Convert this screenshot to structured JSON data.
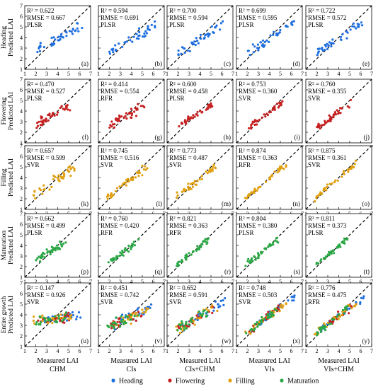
{
  "figure": {
    "row_labels": [
      [
        "Heading",
        "Predicted LAI"
      ],
      [
        "Flowering",
        "Predicted LAI"
      ],
      [
        "Filling",
        "Predicted LAI"
      ],
      [
        "Maturation",
        "Predicted LAI"
      ],
      [
        "Entire growth",
        "Predicted LAI"
      ]
    ],
    "col_xlabels": [
      "Measured LAI",
      "Measured LAI",
      "Measured LAI",
      "Measured LAI",
      "Measured LAI"
    ],
    "col_features": [
      "CHM",
      "CIs",
      "CIs+CHM",
      "VIs",
      "VIs+CHM"
    ],
    "legend": [
      {
        "label": "Heading",
        "color": "#1f6fe0"
      },
      {
        "label": "Flowering",
        "color": "#c62020"
      },
      {
        "label": "Filling",
        "color": "#e0a010"
      },
      {
        "label": "Maturation",
        "color": "#2aa845"
      }
    ]
  },
  "chart_data": {
    "type": "scatter",
    "grid": false,
    "xlim": [
      1,
      7
    ],
    "ylim": [
      1,
      7
    ],
    "ticks": [
      1,
      2,
      3,
      4,
      5,
      6,
      7
    ],
    "reference_line": "1:1 dashed",
    "stages": [
      "Heading",
      "Flowering",
      "Filling",
      "Maturation"
    ],
    "panels": [
      {
        "id": "(a)",
        "r2": "R² = 0.622",
        "rmse": "RMSE = 0.667",
        "model": "PLSR",
        "stage": "Heading",
        "feature": "CHM",
        "slope": 0.62,
        "spread": 0.55,
        "range": [
          2.0,
          6.3
        ],
        "seed": 11
      },
      {
        "id": "(b)",
        "r2": "R² = 0.594",
        "rmse": "RMSE = 0.691",
        "model": "PLSR",
        "stage": "Heading",
        "feature": "CIs",
        "slope": 0.6,
        "spread": 0.58,
        "range": [
          2.0,
          6.3
        ],
        "seed": 12
      },
      {
        "id": "(c)",
        "r2": "R² = 0.700",
        "rmse": "RMSE = 0.594",
        "model": "PLSR",
        "stage": "Heading",
        "feature": "CIs+CHM",
        "slope": 0.68,
        "spread": 0.5,
        "range": [
          2.0,
          6.3
        ],
        "seed": 13
      },
      {
        "id": "(d)",
        "r2": "R² = 0.699",
        "rmse": "RMSE = 0.595",
        "model": "PLSR",
        "stage": "Heading",
        "feature": "VIs",
        "slope": 0.68,
        "spread": 0.5,
        "range": [
          2.0,
          6.3
        ],
        "seed": 14
      },
      {
        "id": "(e)",
        "r2": "R² = 0.722",
        "rmse": "RMSE = 0.572",
        "model": "PLSR",
        "stage": "Heading",
        "feature": "VIs+CHM",
        "slope": 0.7,
        "spread": 0.48,
        "range": [
          2.0,
          6.3
        ],
        "seed": 15
      },
      {
        "id": "(f)",
        "r2": "R² = 0.470",
        "rmse": "RMSE = 0.527",
        "model": "PLSR",
        "stage": "Flowering",
        "feature": "CHM",
        "slope": 0.5,
        "spread": 0.45,
        "range": [
          2.0,
          5.2
        ],
        "seed": 21
      },
      {
        "id": "(g)",
        "r2": "R² = 0.414",
        "rmse": "RMSE = 0.554",
        "model": "RFR",
        "stage": "Flowering",
        "feature": "CIs",
        "slope": 0.55,
        "spread": 0.48,
        "range": [
          2.0,
          5.2
        ],
        "seed": 22
      },
      {
        "id": "(h)",
        "r2": "R² = 0.600",
        "rmse": "RMSE = 0.458",
        "model": "PLSR",
        "stage": "Flowering",
        "feature": "CIs+CHM",
        "slope": 0.65,
        "spread": 0.4,
        "range": [
          2.0,
          5.2
        ],
        "seed": 23
      },
      {
        "id": "(i)",
        "r2": "R² = 0.753",
        "rmse": "RMSE = 0.360",
        "model": "SVR",
        "stage": "Flowering",
        "feature": "VIs",
        "slope": 0.8,
        "spread": 0.3,
        "range": [
          2.0,
          5.2
        ],
        "seed": 24
      },
      {
        "id": "(j)",
        "r2": "R² = 0.760",
        "rmse": "RMSE = 0.355",
        "model": "SVR",
        "stage": "Flowering",
        "feature": "VIs+CHM",
        "slope": 0.8,
        "spread": 0.3,
        "range": [
          2.0,
          5.2
        ],
        "seed": 25
      },
      {
        "id": "(k)",
        "r2": "R² = 0.657",
        "rmse": "RMSE = 0.599",
        "model": "SVR",
        "stage": "Filling",
        "feature": "CHM",
        "slope": 0.7,
        "spread": 0.5,
        "range": [
          1.8,
          5.6
        ],
        "seed": 31
      },
      {
        "id": "(l)",
        "r2": "R² = 0.745",
        "rmse": "RMSE = 0.516",
        "model": "SVR",
        "stage": "Filling",
        "feature": "CIs",
        "slope": 0.78,
        "spread": 0.42,
        "range": [
          1.8,
          5.6
        ],
        "seed": 32
      },
      {
        "id": "(m)",
        "r2": "R² = 0.773",
        "rmse": "RMSE = 0.487",
        "model": "SVR",
        "stage": "Filling",
        "feature": "CIs+CHM",
        "slope": 0.8,
        "spread": 0.4,
        "range": [
          1.8,
          5.6
        ],
        "seed": 33
      },
      {
        "id": "(n)",
        "r2": "R² = 0.874",
        "rmse": "RMSE = 0.363",
        "model": "RFR",
        "stage": "Filling",
        "feature": "VIs",
        "slope": 0.88,
        "spread": 0.28,
        "range": [
          1.8,
          5.6
        ],
        "seed": 34
      },
      {
        "id": "(o)",
        "r2": "R² = 0.875",
        "rmse": "RMSE = 0.361",
        "model": "SVR",
        "stage": "Filling",
        "feature": "VIs+CHM",
        "slope": 0.88,
        "spread": 0.28,
        "range": [
          1.8,
          5.6
        ],
        "seed": 35
      },
      {
        "id": "(p)",
        "r2": "R² = 0.662",
        "rmse": "RMSE = 0.499",
        "model": "PLSR",
        "stage": "Maturation",
        "feature": "CHM",
        "slope": 0.65,
        "spread": 0.42,
        "range": [
          1.8,
          4.8
        ],
        "seed": 41
      },
      {
        "id": "(q)",
        "r2": "R² = 0.760",
        "rmse": "RMSE = 0.420",
        "model": "RFR",
        "stage": "Maturation",
        "feature": "CIs",
        "slope": 0.75,
        "spread": 0.35,
        "range": [
          1.8,
          4.8
        ],
        "seed": 42
      },
      {
        "id": "(r)",
        "r2": "R² = 0.821",
        "rmse": "RMSE = 0.363",
        "model": "RFR",
        "stage": "Maturation",
        "feature": "CIs+CHM",
        "slope": 0.82,
        "spread": 0.3,
        "range": [
          1.8,
          4.8
        ],
        "seed": 43
      },
      {
        "id": "(s)",
        "r2": "R² = 0.804",
        "rmse": "RMSE = 0.380",
        "model": "PLSR",
        "stage": "Maturation",
        "feature": "VIs",
        "slope": 0.8,
        "spread": 0.32,
        "range": [
          1.8,
          4.8
        ],
        "seed": 44
      },
      {
        "id": "(t)",
        "r2": "R² = 0.811",
        "rmse": "RMSE = 0.373",
        "model": "PLSR",
        "stage": "Maturation",
        "feature": "VIs+CHM",
        "slope": 0.8,
        "spread": 0.32,
        "range": [
          1.8,
          4.8
        ],
        "seed": 45
      },
      {
        "id": "(u)",
        "r2": "R² = 0.147",
        "rmse": "RMSE = 0.926",
        "model": "SVR",
        "stage": "All",
        "feature": "CHM",
        "slope": 0.12,
        "spread": 0.45,
        "range": [
          1.8,
          6.3
        ],
        "seed": 51
      },
      {
        "id": "(v)",
        "r2": "R² = 0.451",
        "rmse": "RMSE = 0.742",
        "model": "SVR",
        "stage": "All",
        "feature": "CIs",
        "slope": 0.45,
        "spread": 0.6,
        "range": [
          1.8,
          6.3
        ],
        "seed": 52
      },
      {
        "id": "(w)",
        "r2": "R² = 0.652",
        "rmse": "RMSE = 0.591",
        "model": "SVR",
        "stage": "All",
        "feature": "CIs+CHM",
        "slope": 0.65,
        "spread": 0.5,
        "range": [
          1.8,
          6.3
        ],
        "seed": 53
      },
      {
        "id": "(x)",
        "r2": "R² = 0.748",
        "rmse": "RMSE = 0.503",
        "model": "SVR",
        "stage": "All",
        "feature": "VIs",
        "slope": 0.78,
        "spread": 0.42,
        "range": [
          1.8,
          6.3
        ],
        "seed": 54
      },
      {
        "id": "(y)",
        "r2": "R² = 0.776",
        "rmse": "RMSE = 0.475",
        "model": "RFR",
        "stage": "All",
        "feature": "VIs+CHM",
        "slope": 0.8,
        "spread": 0.4,
        "range": [
          1.8,
          6.3
        ],
        "seed": 55
      }
    ]
  }
}
